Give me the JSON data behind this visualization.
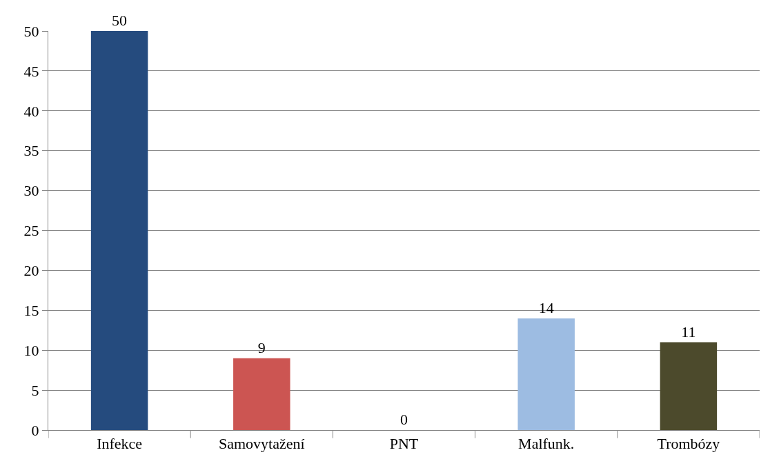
{
  "chart_data": {
    "type": "bar",
    "categories": [
      "Infekce",
      "Samovytažení",
      "PNT",
      "Malfunk.",
      "Trombózy"
    ],
    "values": [
      50,
      9,
      0,
      14,
      11
    ],
    "colors": [
      "#254b7e",
      "#cc5552",
      "#9bbb59",
      "#9dbce2",
      "#4c4a2c"
    ],
    "ylim": [
      0,
      50
    ],
    "yticks": [
      0,
      5,
      10,
      15,
      20,
      25,
      30,
      35,
      40,
      45,
      50
    ],
    "grid": "y",
    "data_labels": true
  }
}
